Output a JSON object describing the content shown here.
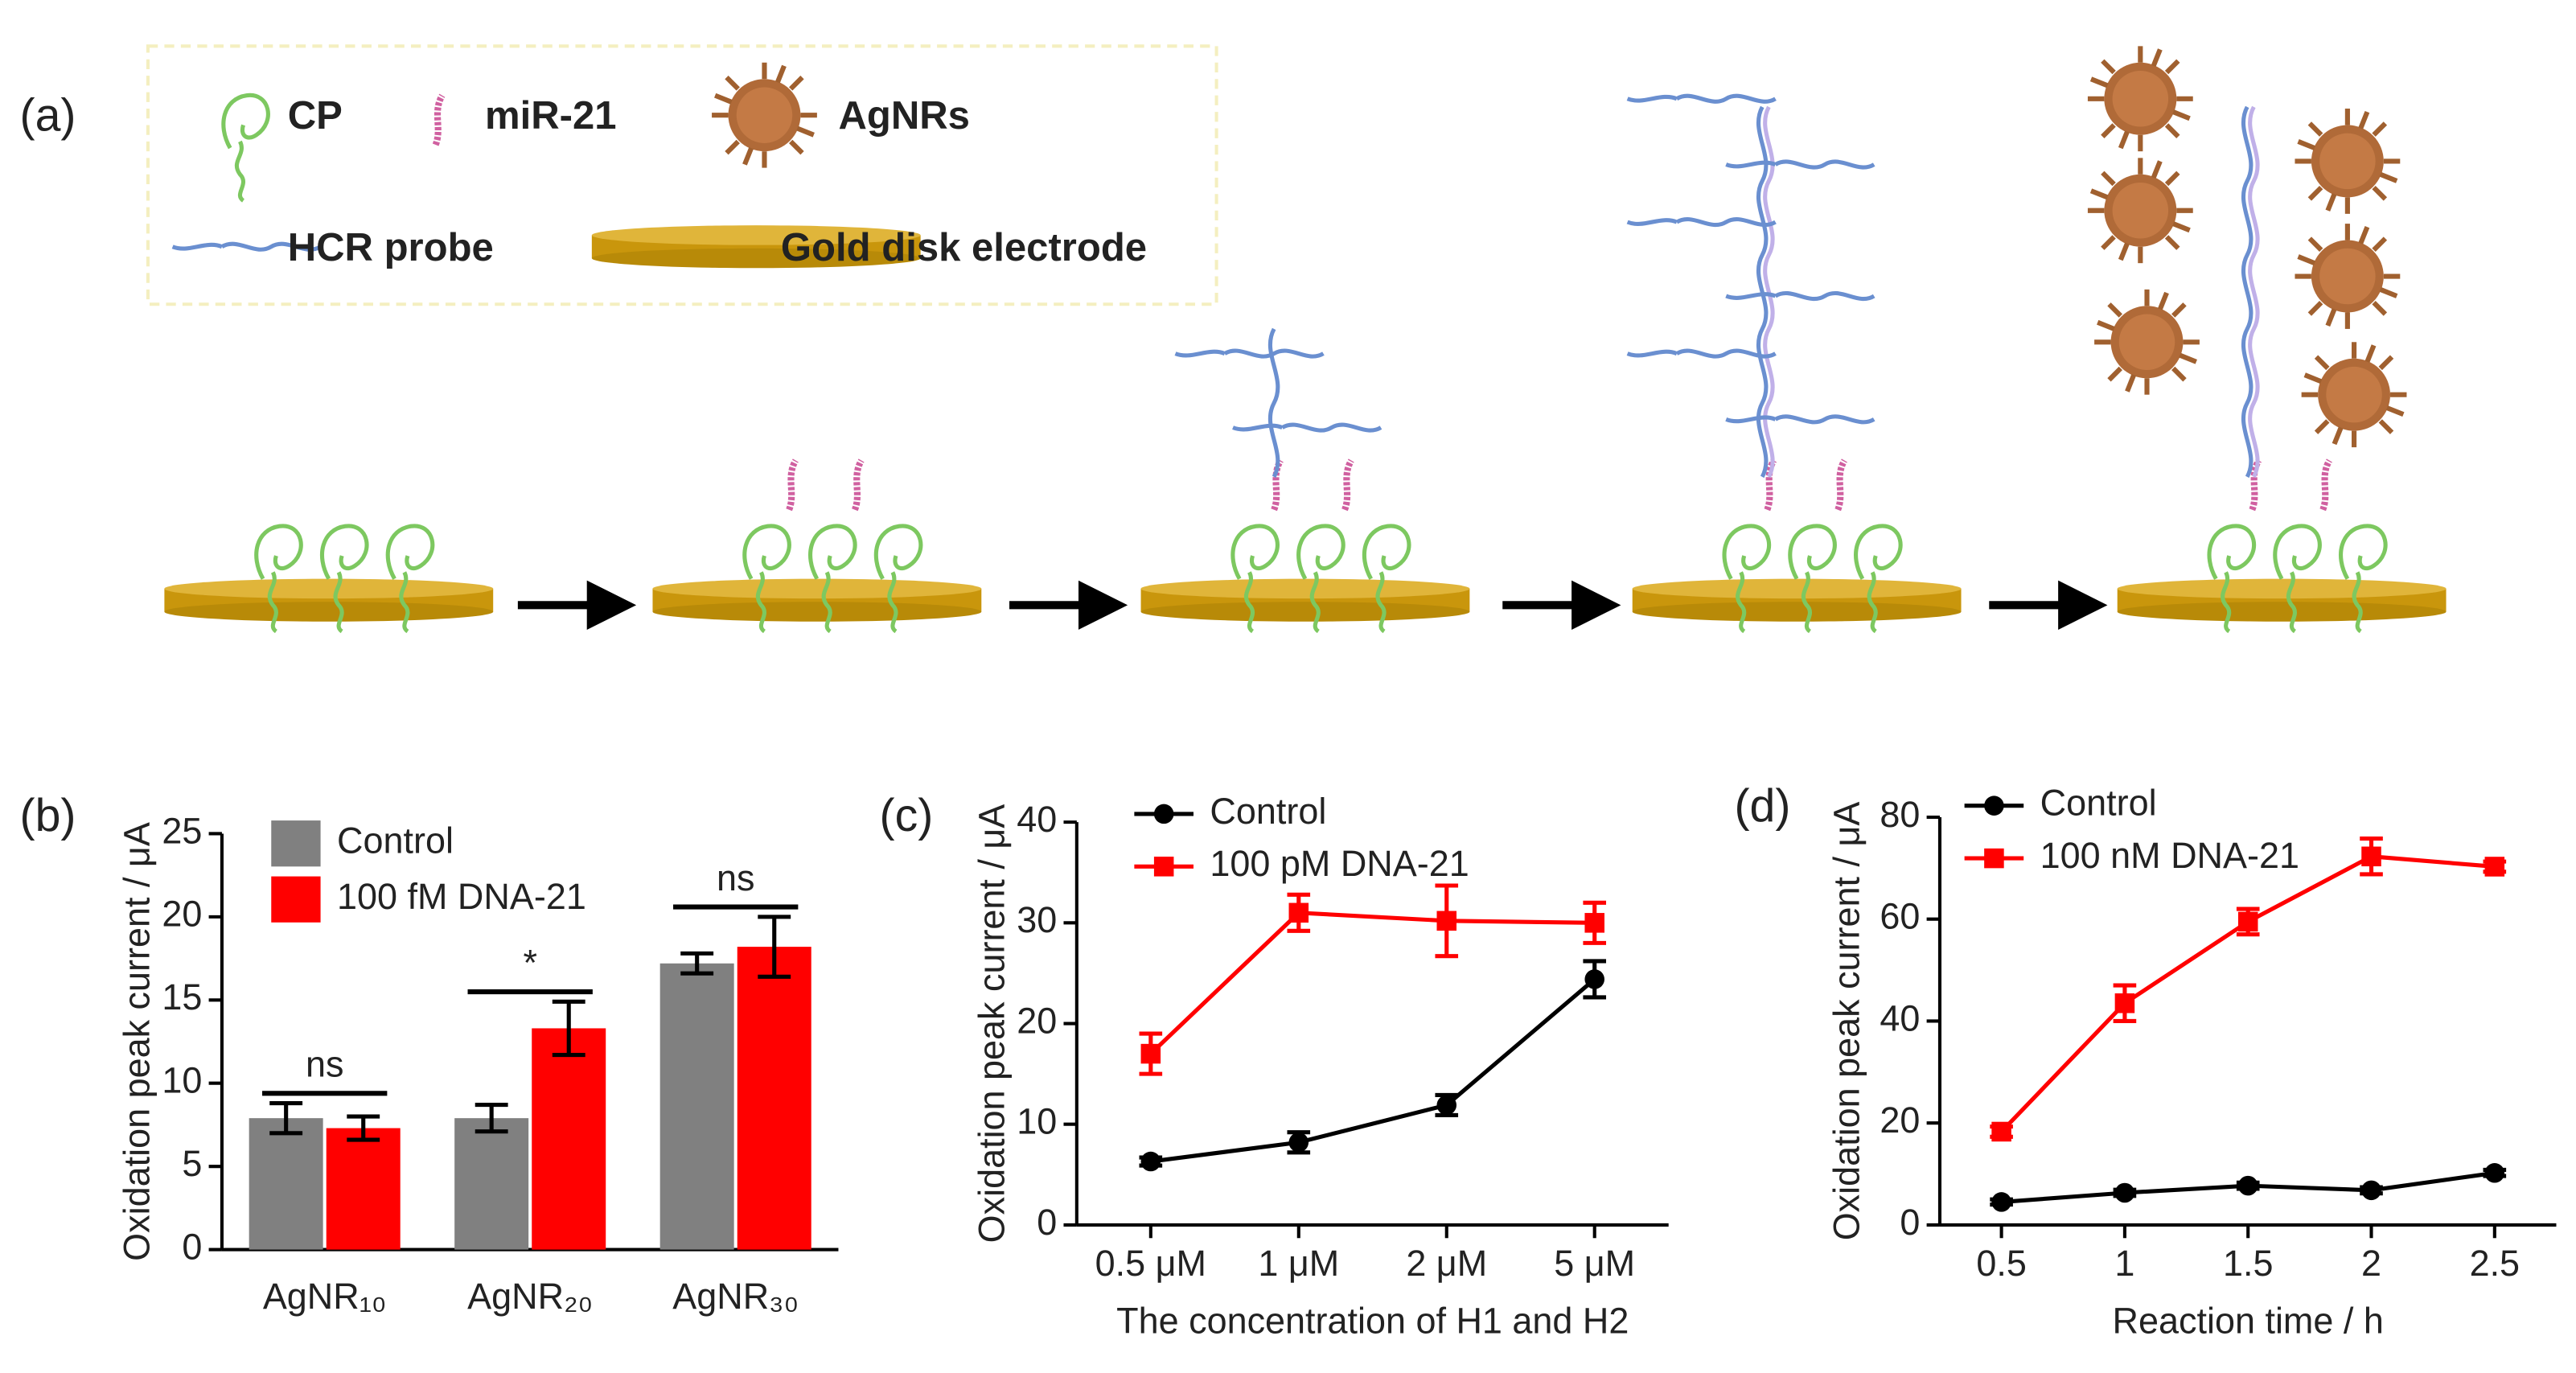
{
  "panel_a": {
    "panel_label": "(a)",
    "legend": {
      "cp": "CP",
      "mir": "miR-21",
      "agnr": "AgNRs",
      "hcr": "HCR probe",
      "electrode": "Gold disk electrode"
    }
  },
  "chart_data": [
    {
      "type": "bar",
      "panel_label": "(b)",
      "ylabel": "Oxidation peak current / μA",
      "categories": [
        "AgNR₁₀",
        "AgNR₂₀",
        "AgNR₃₀"
      ],
      "series": [
        {
          "name": "Control",
          "color": "#808080",
          "values": [
            7.9,
            7.9,
            17.2
          ],
          "errors": [
            0.9,
            0.8,
            0.6
          ]
        },
        {
          "name": "100 fM DNA-21",
          "color": "#ff0000",
          "values": [
            7.3,
            13.3,
            18.2
          ],
          "errors": [
            0.7,
            1.6,
            1.8
          ]
        }
      ],
      "significance": [
        "ns",
        "*",
        "ns"
      ],
      "ylim": [
        0,
        25
      ],
      "yticks": [
        0,
        5,
        10,
        15,
        20,
        25
      ]
    },
    {
      "type": "line",
      "panel_label": "(c)",
      "ylabel": "Oxidation peak current / μA",
      "xlabel": "The concentration of H1 and H2",
      "categories": [
        "0.5 μM",
        "1 μM",
        "2 μM",
        "5 μM"
      ],
      "series": [
        {
          "name": "Control",
          "color": "#000000",
          "marker": "circle",
          "values": [
            6.3,
            8.2,
            11.9,
            24.4
          ],
          "errors": [
            0.4,
            1.0,
            1.0,
            1.8
          ]
        },
        {
          "name": "100 pM DNA-21",
          "color": "#ff0000",
          "marker": "square",
          "values": [
            17.0,
            31.0,
            30.2,
            30.0
          ],
          "errors": [
            2.0,
            1.8,
            3.5,
            2.0
          ]
        }
      ],
      "ylim": [
        0,
        40
      ],
      "yticks": [
        0,
        10,
        20,
        30,
        40
      ]
    },
    {
      "type": "line",
      "panel_label": "(d)",
      "ylabel": "Oxidation peak current / μA",
      "xlabel": "Reaction time / h",
      "x": [
        0.5,
        1,
        1.5,
        2,
        2.5
      ],
      "xlim": [
        0.25,
        2.75
      ],
      "xticks": [
        0.5,
        1,
        1.5,
        2,
        2.5
      ],
      "series": [
        {
          "name": "Control",
          "color": "#000000",
          "marker": "circle",
          "values": [
            4.5,
            6.3,
            7.7,
            6.8,
            10.2
          ],
          "errors": [
            0.5,
            0.6,
            0.6,
            0.6,
            0.6
          ]
        },
        {
          "name": "100 nM DNA-21",
          "color": "#ff0000",
          "marker": "square",
          "values": [
            18.3,
            43.5,
            59.5,
            72.3,
            70.3
          ],
          "errors": [
            1.0,
            3.5,
            2.5,
            3.5,
            1.0
          ]
        }
      ],
      "ylim": [
        0,
        80
      ],
      "yticks": [
        0,
        20,
        40,
        60,
        80
      ]
    }
  ]
}
